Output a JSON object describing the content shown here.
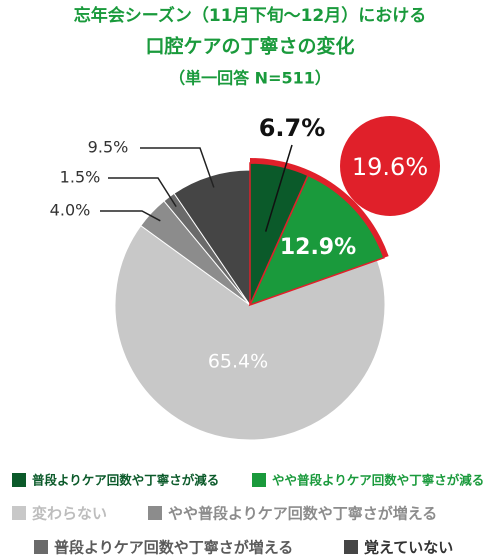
{
  "chart_data": {
    "type": "pie",
    "title": "忘年会シーズン（11月下旬〜12月）における",
    "subtitle": "口腔ケアの丁寧さの変化",
    "note": "（単一回答 N=511）",
    "categories": [
      "普段よりケア回数や丁寧さが減る",
      "やや普段よりケア回数や丁寧さが減る",
      "変わらない",
      "やや普段よりケア回数や丁寧さが増える",
      "普段よりケア回数や丁寧さが増える",
      "覚えていない"
    ],
    "values": [
      6.7,
      12.9,
      65.4,
      4.0,
      1.5,
      9.5
    ],
    "value_labels": [
      "6.7%",
      "12.9%",
      "65.4%",
      "4.0%",
      "1.5%",
      "9.5%"
    ],
    "colors": [
      "#0b5a2a",
      "#1a9a3c",
      "#c8c8c8",
      "#8c8c8c",
      "#6a6a6a",
      "#454545"
    ],
    "annotation": "19.6%",
    "highlight_color": "#e0202a"
  }
}
